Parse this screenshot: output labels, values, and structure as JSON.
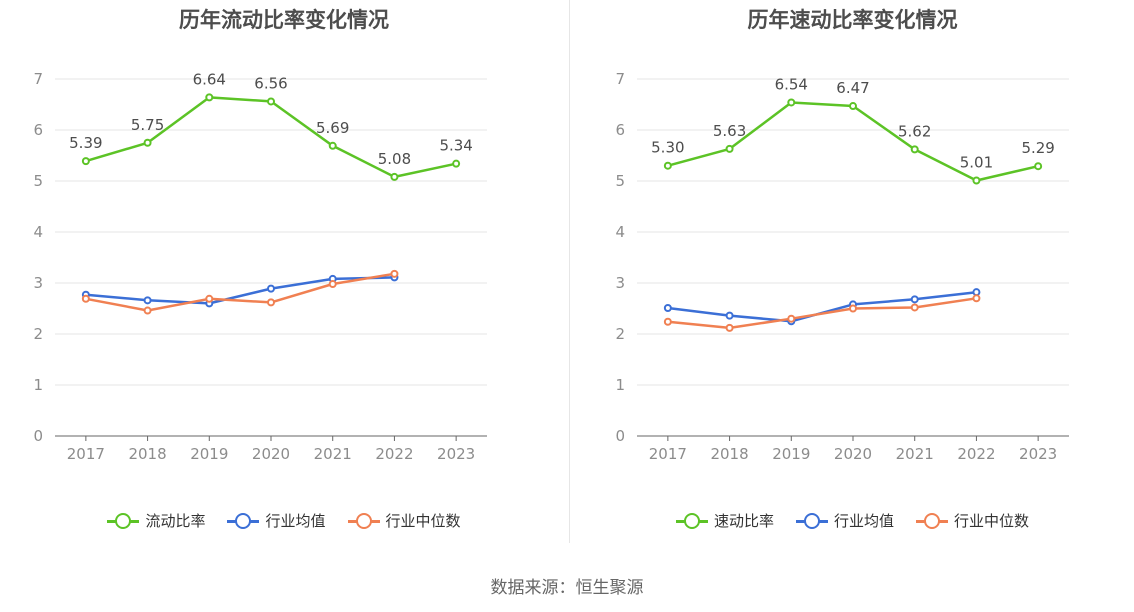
{
  "source_label": "数据来源：恒生聚源",
  "colors": {
    "main": "#5cc326",
    "avg": "#3b6fd6",
    "median": "#f08052",
    "grid": "#e6e6e6",
    "axis": "#666666"
  },
  "chart_data": [
    {
      "type": "line",
      "title": "历年流动比率变化情况",
      "categories": [
        "2017",
        "2018",
        "2019",
        "2020",
        "2021",
        "2022",
        "2023"
      ],
      "ylim": [
        0,
        7
      ],
      "yticks": [
        0,
        1,
        2,
        3,
        4,
        5,
        6,
        7
      ],
      "series": [
        {
          "name": "流动比率",
          "color_key": "main",
          "show_labels": true,
          "values": [
            5.39,
            5.75,
            6.64,
            6.56,
            5.69,
            5.08,
            5.34
          ],
          "labels": [
            "5.39",
            "5.75",
            "6.64",
            "6.56",
            "5.69",
            "5.08",
            "5.34"
          ]
        },
        {
          "name": "行业均值",
          "color_key": "avg",
          "show_labels": false,
          "values": [
            2.77,
            2.66,
            2.6,
            2.89,
            3.08,
            3.11,
            null
          ]
        },
        {
          "name": "行业中位数",
          "color_key": "median",
          "show_labels": false,
          "values": [
            2.69,
            2.46,
            2.69,
            2.62,
            2.98,
            3.18,
            null
          ]
        }
      ]
    },
    {
      "type": "line",
      "title": "历年速动比率变化情况",
      "categories": [
        "2017",
        "2018",
        "2019",
        "2020",
        "2021",
        "2022",
        "2023"
      ],
      "ylim": [
        0,
        7
      ],
      "yticks": [
        0,
        1,
        2,
        3,
        4,
        5,
        6,
        7
      ],
      "series": [
        {
          "name": "速动比率",
          "color_key": "main",
          "show_labels": true,
          "values": [
            5.3,
            5.63,
            6.54,
            6.47,
            5.62,
            5.01,
            5.29
          ],
          "labels": [
            "5.30",
            "5.63",
            "6.54",
            "6.47",
            "5.62",
            "5.01",
            "5.29"
          ]
        },
        {
          "name": "行业均值",
          "color_key": "avg",
          "show_labels": false,
          "values": [
            2.51,
            2.36,
            2.25,
            2.58,
            2.68,
            2.82,
            null
          ]
        },
        {
          "name": "行业中位数",
          "color_key": "median",
          "show_labels": false,
          "values": [
            2.24,
            2.12,
            2.3,
            2.5,
            2.52,
            2.7,
            null
          ]
        }
      ]
    }
  ]
}
